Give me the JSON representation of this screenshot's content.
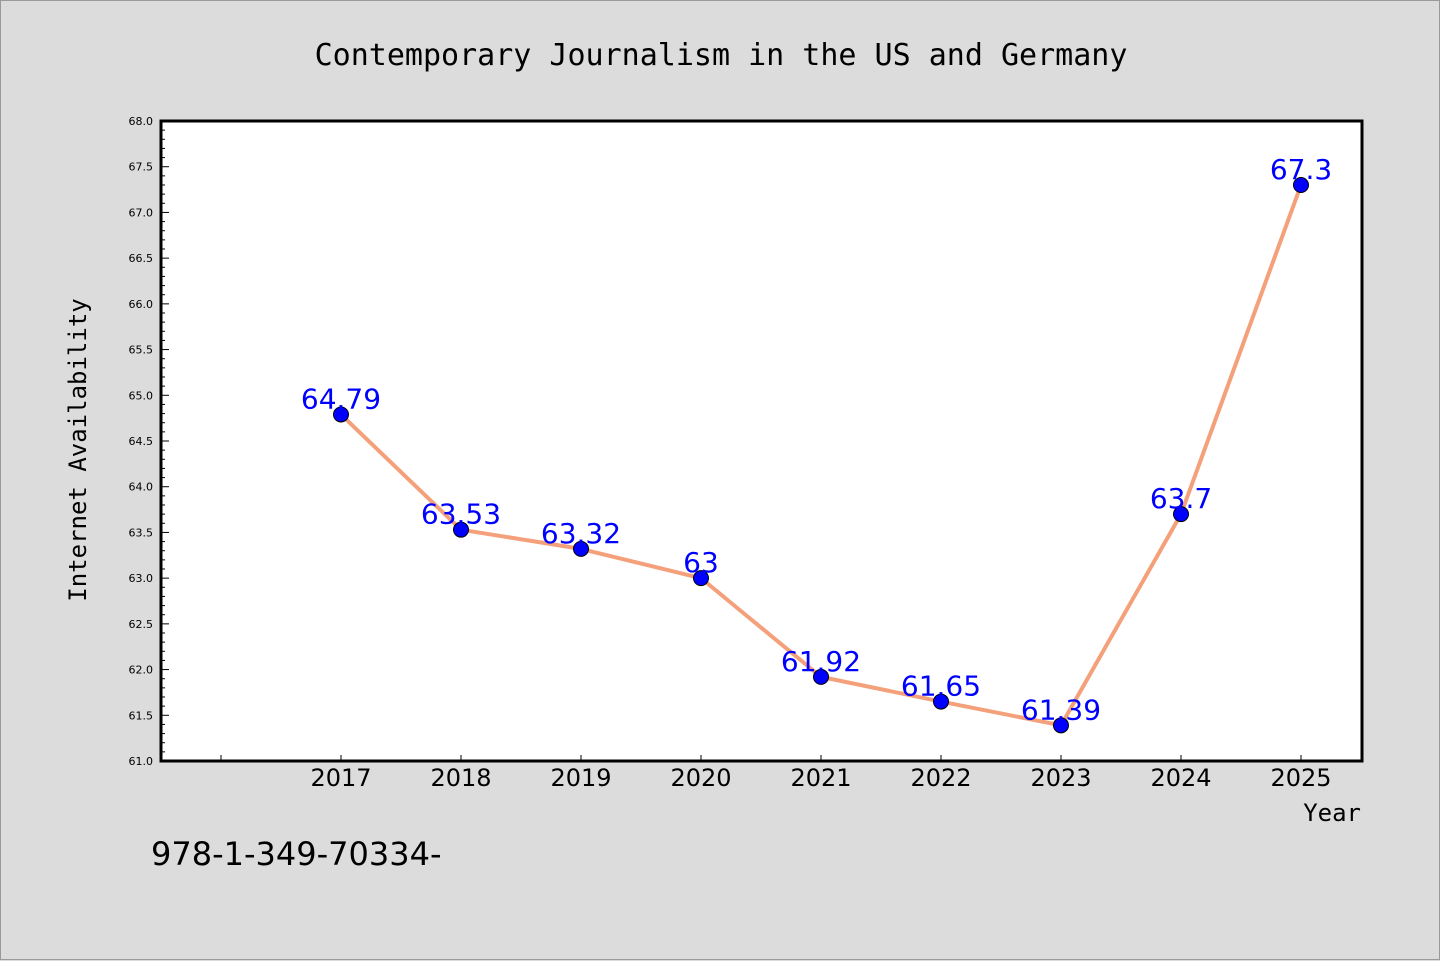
{
  "chart_data": {
    "type": "line",
    "title": "Contemporary Journalism in the US and Germany",
    "xlabel": "Year",
    "ylabel": "Internet Availability",
    "x": [
      "2017",
      "2018",
      "2019",
      "2020",
      "2021",
      "2022",
      "2023",
      "2024",
      "2025"
    ],
    "series": [
      {
        "values": [
          64.79,
          63.53,
          63.32,
          63,
          61.92,
          61.65,
          61.39,
          63.7,
          67.3
        ],
        "labels": [
          "64.79",
          "63.53",
          "63.32",
          "63",
          "61.92",
          "61.65",
          "61.39",
          "63.7",
          "67.3"
        ],
        "line_color": "#f4a07a",
        "marker_color": "#0000ff"
      }
    ],
    "ylim": [
      61.0,
      68.0
    ],
    "yticks": [
      "61.0",
      "61.5",
      "62.0",
      "62.5",
      "63.0",
      "63.5",
      "64.0",
      "64.5",
      "65.0",
      "65.5",
      "66.0",
      "66.5",
      "67.0",
      "67.5",
      "68.0"
    ],
    "grid": false,
    "legend": "none",
    "label_color": "#0000ff",
    "background": "#dcdcdc",
    "plot_background": "#ffffff"
  },
  "footer": {
    "text": "978-1-349-70334-"
  }
}
